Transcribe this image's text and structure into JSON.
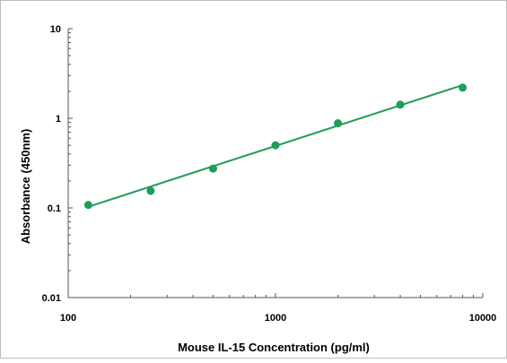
{
  "chart_data": {
    "type": "scatter",
    "title": "",
    "xlabel": "Mouse IL-15 Concentration (pg/ml)",
    "ylabel": "Absorbance (450nm)",
    "x_scale": "log",
    "y_scale": "log",
    "xlim": [
      100,
      10000
    ],
    "ylim": [
      0.01,
      10
    ],
    "x_ticks": [
      {
        "value": 100,
        "label": "100"
      },
      {
        "value": 1000,
        "label": "1000"
      },
      {
        "value": 10000,
        "label": "10000"
      }
    ],
    "y_ticks": [
      {
        "value": 10,
        "label": "10"
      },
      {
        "value": 1,
        "label": "1"
      },
      {
        "value": 0.1,
        "label": "0.1"
      },
      {
        "value": 0.01,
        "label": "0.01"
      }
    ],
    "grid": false,
    "legend": false,
    "series": [
      {
        "x": [
          125,
          250,
          500,
          1000,
          2000,
          4000,
          8000
        ],
        "y": [
          0.108,
          0.155,
          0.275,
          0.5,
          0.88,
          1.42,
          2.2
        ]
      }
    ],
    "fit_line": {
      "x": [
        125,
        8000
      ],
      "y": [
        0.103,
        2.35
      ]
    },
    "colors": {
      "series": "#1e9e57",
      "axis": "#555555",
      "frame": "#bdbdbd"
    }
  }
}
